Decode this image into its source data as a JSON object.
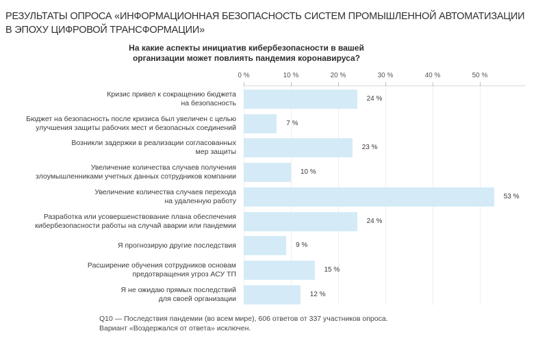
{
  "header": {
    "title": "РЕЗУЛЬТАТЫ ОПРОСА «ИНФОРМАЦИОННАЯ БЕЗОПАСНОСТЬ СИСТЕМ ПРОМЫШЛЕННОЙ АВТОМАТИЗАЦИИ В ЭПОХУ ЦИФРОВОЙ ТРАНСФОРМАЦИИ»"
  },
  "question": {
    "line1": "На какие аспекты инициатив кибербезопасности в вашей",
    "line2": "организации может повлиять пандемия коронавируса?"
  },
  "footnote": {
    "line1": "Q10 — Последствия пандемии (во всем мире), 606 ответов от 337 участников опроса.",
    "line2": "Вариант «Воздержался от ответа» исключен."
  },
  "colors": {
    "bar": "#d4ebf7"
  },
  "chart_data": {
    "type": "bar",
    "orientation": "horizontal",
    "title": "На какие аспекты инициатив кибербезопасности в вашей организации может повлиять пандемия коронавируса?",
    "xlim": [
      0,
      55
    ],
    "ticks": [
      "0 %",
      "10 %",
      "20 %",
      "30 %",
      "40 %",
      "50 %"
    ],
    "tick_values": [
      0,
      10,
      20,
      30,
      40,
      50
    ],
    "grid": true,
    "categories": [
      [
        "Кризис привел к сокращению бюджета",
        "на безопасность"
      ],
      [
        "Бюджет на безопасность после кризиса был увеличен с целью",
        "улучшения защиты рабочих мест и безопасных  соединений"
      ],
      [
        "Возникли задержки в реализации согласованных",
        "мер защиты"
      ],
      [
        "Увеличение количества случаев получения",
        "злоумышленниками учетных данных сотрудников компании"
      ],
      [
        "Увеличение количества случаев перехода",
        "на удаленную работу"
      ],
      [
        "Разработка или усовершенствование плана обеспечения",
        "кибербезопасности работы на случай аварии или пандемии"
      ],
      [
        "Я прогнозирую другие последствия"
      ],
      [
        "Расширение обучения сотрудников основам",
        "предотвращения угроз АСУ ТП"
      ],
      [
        "Я не ожидаю прямых последствий",
        "для своей организации"
      ]
    ],
    "values": [
      24,
      7,
      23,
      10,
      53,
      24,
      9,
      15,
      12
    ],
    "labels": [
      "24 %",
      "7 %",
      "23 %",
      "10 %",
      "53 %",
      "24 %",
      "9 %",
      "15 %",
      "12 %"
    ]
  }
}
